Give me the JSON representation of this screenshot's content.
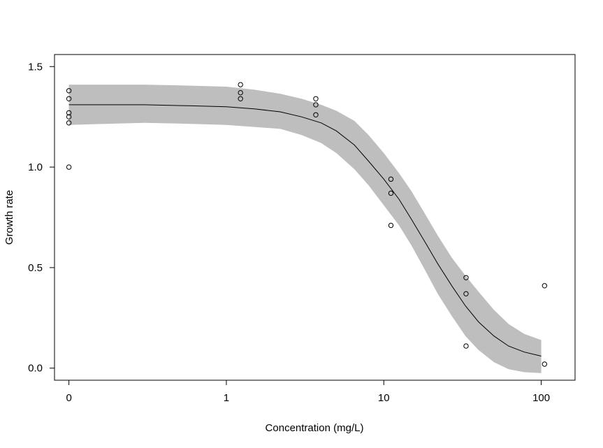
{
  "chart_data": {
    "type": "scatter",
    "xlabel": "Concentration (mg/L)",
    "ylabel": "Growth rate",
    "x_scale": "log",
    "x_ticks": [
      {
        "value": 0.1,
        "label": "0"
      },
      {
        "value": 1,
        "label": "1"
      },
      {
        "value": 10,
        "label": "10"
      },
      {
        "value": 100,
        "label": "100"
      }
    ],
    "y_ticks": [
      {
        "value": 0.0,
        "label": "0.0"
      },
      {
        "value": 0.5,
        "label": "0.5"
      },
      {
        "value": 1.0,
        "label": "1.0"
      },
      {
        "value": 1.5,
        "label": "1.5"
      }
    ],
    "xlim": [
      0.081,
      164
    ],
    "ylim": [
      -0.06,
      1.56
    ],
    "grid": false,
    "points": [
      {
        "x": 0,
        "y": 1.38
      },
      {
        "x": 0,
        "y": 1.34
      },
      {
        "x": 0,
        "y": 1.27
      },
      {
        "x": 0,
        "y": 1.25
      },
      {
        "x": 0,
        "y": 1.22
      },
      {
        "x": 0,
        "y": 1.0
      },
      {
        "x": 1.23,
        "y": 1.41
      },
      {
        "x": 1.23,
        "y": 1.37
      },
      {
        "x": 1.23,
        "y": 1.34
      },
      {
        "x": 3.7,
        "y": 1.34
      },
      {
        "x": 3.7,
        "y": 1.31
      },
      {
        "x": 3.7,
        "y": 1.26
      },
      {
        "x": 11.1,
        "y": 0.94
      },
      {
        "x": 11.1,
        "y": 0.87
      },
      {
        "x": 11.1,
        "y": 0.71
      },
      {
        "x": 33.3,
        "y": 0.45
      },
      {
        "x": 33.3,
        "y": 0.37
      },
      {
        "x": 33.3,
        "y": 0.11
      },
      {
        "x": 105,
        "y": 0.41
      },
      {
        "x": 105,
        "y": 0.02
      }
    ],
    "fit_curve": [
      {
        "x": 0.1,
        "y": 1.31,
        "lower": 1.21,
        "upper": 1.41
      },
      {
        "x": 0.3,
        "y": 1.31,
        "lower": 1.22,
        "upper": 1.41
      },
      {
        "x": 0.6,
        "y": 1.305,
        "lower": 1.215,
        "upper": 1.405
      },
      {
        "x": 1.0,
        "y": 1.3,
        "lower": 1.21,
        "upper": 1.4
      },
      {
        "x": 1.5,
        "y": 1.29,
        "lower": 1.2,
        "upper": 1.385
      },
      {
        "x": 2.2,
        "y": 1.275,
        "lower": 1.19,
        "upper": 1.365
      },
      {
        "x": 3.0,
        "y": 1.25,
        "lower": 1.16,
        "upper": 1.34
      },
      {
        "x": 4.0,
        "y": 1.22,
        "lower": 1.12,
        "upper": 1.31
      },
      {
        "x": 5.0,
        "y": 1.18,
        "lower": 1.07,
        "upper": 1.28
      },
      {
        "x": 6.5,
        "y": 1.11,
        "lower": 0.99,
        "upper": 1.23
      },
      {
        "x": 8.0,
        "y": 1.03,
        "lower": 0.91,
        "upper": 1.16
      },
      {
        "x": 10.0,
        "y": 0.94,
        "lower": 0.81,
        "upper": 1.07
      },
      {
        "x": 12.5,
        "y": 0.84,
        "lower": 0.71,
        "upper": 0.97
      },
      {
        "x": 15.0,
        "y": 0.74,
        "lower": 0.61,
        "upper": 0.88
      },
      {
        "x": 18.5,
        "y": 0.62,
        "lower": 0.48,
        "upper": 0.76
      },
      {
        "x": 22.0,
        "y": 0.52,
        "lower": 0.37,
        "upper": 0.66
      },
      {
        "x": 27.0,
        "y": 0.41,
        "lower": 0.26,
        "upper": 0.55
      },
      {
        "x": 33.0,
        "y": 0.31,
        "lower": 0.16,
        "upper": 0.46
      },
      {
        "x": 40.0,
        "y": 0.23,
        "lower": 0.09,
        "upper": 0.38
      },
      {
        "x": 50.0,
        "y": 0.16,
        "lower": 0.03,
        "upper": 0.29
      },
      {
        "x": 62.0,
        "y": 0.11,
        "lower": -0.005,
        "upper": 0.22
      },
      {
        "x": 78.0,
        "y": 0.08,
        "lower": -0.02,
        "upper": 0.17
      },
      {
        "x": 100.0,
        "y": 0.06,
        "lower": -0.025,
        "upper": 0.14
      }
    ],
    "colors": {
      "band": "#bebebe",
      "line": "#000000",
      "points": "#000000"
    }
  }
}
